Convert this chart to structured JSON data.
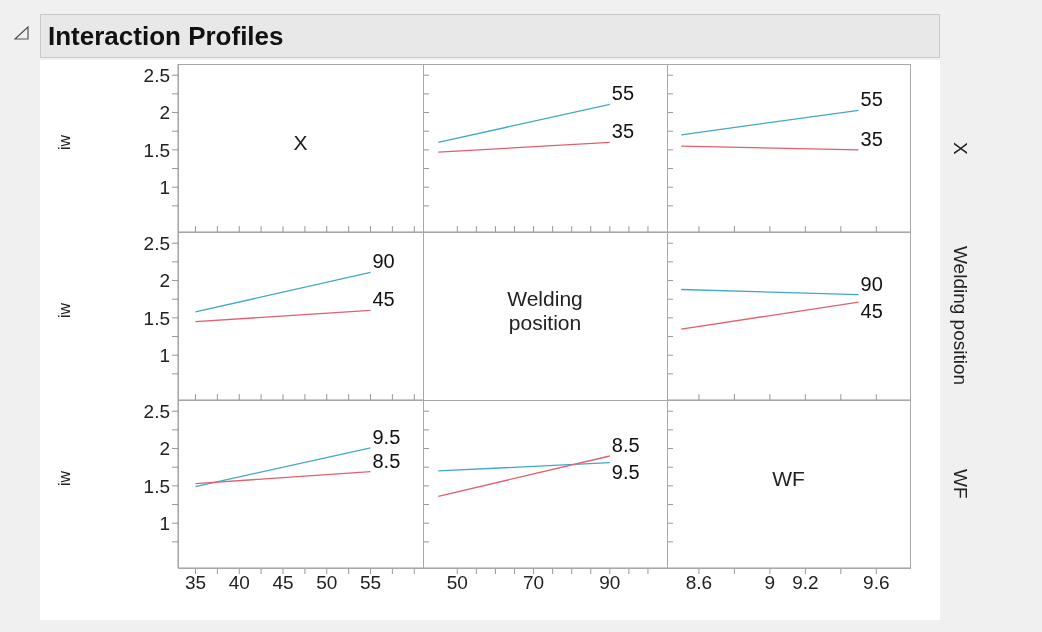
{
  "chart_data": [
    {
      "type": "line",
      "title": "Interaction Profiles",
      "annotations": [
        "X"
      ],
      "ylabel": "iw",
      "tick_labels": "y",
      "xlim": [
        33,
        61
      ],
      "xticks": [
        35,
        {
          "value": 37.5,
          "label": null
        },
        40,
        {
          "value": 42.5,
          "label": null
        },
        45,
        {
          "value": 47.5,
          "label": null
        },
        50,
        {
          "value": 52.5,
          "label": null
        },
        55,
        {
          "value": 57.5,
          "label": null
        },
        {
          "value": 60,
          "label": null
        }
      ],
      "ylim": [
        0.4,
        2.65
      ],
      "yticks": [
        {
          "value": 0.75,
          "label": null
        },
        1,
        {
          "value": 1.25,
          "label": null
        },
        1.5,
        {
          "value": 1.75,
          "label": null
        },
        2,
        {
          "value": 2.25,
          "label": null
        },
        2.5
      ]
    },
    {
      "type": "line",
      "marker": "none",
      "line_style": "solid",
      "tick_labels": false,
      "xlim": [
        41,
        105
      ],
      "xticks": [
        50,
        {
          "value": 55,
          "label": null
        },
        {
          "value": 60,
          "label": null
        },
        {
          "value": 65,
          "label": null
        },
        70,
        {
          "value": 75,
          "label": null
        },
        {
          "value": 80,
          "label": null
        },
        {
          "value": 85,
          "label": null
        },
        90,
        {
          "value": 95,
          "label": null
        },
        {
          "value": 100,
          "label": null
        }
      ],
      "ylim": [
        0.4,
        2.65
      ],
      "yticks": [
        {
          "value": 0.75,
          "label": null
        },
        1,
        {
          "value": 1.25,
          "label": null
        },
        1.5,
        {
          "value": 1.75,
          "label": null
        },
        2,
        {
          "value": 2.25,
          "label": null
        },
        2.5
      ],
      "series": [
        {
          "name": "55",
          "color": "#3fa9c9",
          "x": [
            45,
            90
          ],
          "values": [
            1.6,
            2.11
          ]
        },
        {
          "name": "35",
          "color": "#e0606e",
          "x": [
            45,
            90
          ],
          "values": [
            1.47,
            1.6
          ]
        }
      ]
    },
    {
      "type": "line",
      "marker": "none",
      "line_style": "solid",
      "tick_labels": false,
      "y2label": "X",
      "xlim": [
        8.42,
        9.79
      ],
      "xticks": [
        8.6,
        {
          "value": 8.8,
          "label": null
        },
        9,
        9.2,
        {
          "value": 9.4,
          "label": null
        },
        9.6
      ],
      "ylim": [
        0.4,
        2.65
      ],
      "yticks": [
        {
          "value": 0.75,
          "label": null
        },
        1,
        {
          "value": 1.25,
          "label": null
        },
        1.5,
        {
          "value": 1.75,
          "label": null
        },
        2,
        {
          "value": 2.25,
          "label": null
        },
        2.5
      ],
      "series": [
        {
          "name": "55",
          "color": "#3fa9c9",
          "x": [
            8.5,
            9.5
          ],
          "values": [
            1.7,
            2.03
          ]
        },
        {
          "name": "35",
          "color": "#e0606e",
          "x": [
            8.5,
            9.5
          ],
          "values": [
            1.55,
            1.5
          ]
        }
      ]
    },
    {
      "type": "line",
      "marker": "none",
      "line_style": "solid",
      "ylabel": "iw",
      "tick_labels": "y",
      "xlim": [
        33,
        61
      ],
      "xticks": [
        35,
        {
          "value": 37.5,
          "label": null
        },
        40,
        {
          "value": 42.5,
          "label": null
        },
        45,
        {
          "value": 47.5,
          "label": null
        },
        50,
        {
          "value": 52.5,
          "label": null
        },
        55,
        {
          "value": 57.5,
          "label": null
        },
        {
          "value": 60,
          "label": null
        }
      ],
      "ylim": [
        0.4,
        2.65
      ],
      "yticks": [
        {
          "value": 0.75,
          "label": null
        },
        1,
        {
          "value": 1.25,
          "label": null
        },
        1.5,
        {
          "value": 1.75,
          "label": null
        },
        2,
        {
          "value": 2.25,
          "label": null
        },
        2.5
      ],
      "series": [
        {
          "name": "90",
          "color": "#3fa9c9",
          "x": [
            35,
            55
          ],
          "values": [
            1.58,
            2.11
          ]
        },
        {
          "name": "45",
          "color": "#e0606e",
          "x": [
            35,
            55
          ],
          "values": [
            1.45,
            1.6
          ]
        }
      ]
    },
    {
      "type": "other",
      "annotations": [
        "Welding position"
      ]
    },
    {
      "type": "line",
      "marker": "none",
      "line_style": "solid",
      "tick_labels": false,
      "y2label": "Welding position",
      "xlim": [
        8.42,
        9.79
      ],
      "xticks": [
        8.6,
        {
          "value": 8.8,
          "label": null
        },
        9,
        9.2,
        {
          "value": 9.4,
          "label": null
        },
        9.6
      ],
      "ylim": [
        0.4,
        2.65
      ],
      "yticks": [
        {
          "value": 0.75,
          "label": null
        },
        1,
        {
          "value": 1.25,
          "label": null
        },
        1.5,
        {
          "value": 1.75,
          "label": null
        },
        2,
        {
          "value": 2.25,
          "label": null
        },
        2.5
      ],
      "series": [
        {
          "name": "90",
          "color": "#3fa9c9",
          "x": [
            8.5,
            9.5
          ],
          "values": [
            1.88,
            1.81
          ]
        },
        {
          "name": "45",
          "color": "#e0606e",
          "x": [
            8.5,
            9.5
          ],
          "values": [
            1.35,
            1.71
          ]
        }
      ]
    },
    {
      "type": "line",
      "marker": "none",
      "line_style": "solid",
      "ylabel": "iw",
      "xlim": [
        33,
        61
      ],
      "xticks": [
        35,
        {
          "value": 37.5,
          "label": null
        },
        40,
        {
          "value": 42.5,
          "label": null
        },
        45,
        {
          "value": 47.5,
          "label": null
        },
        50,
        {
          "value": 52.5,
          "label": null
        },
        55,
        {
          "value": 57.5,
          "label": null
        },
        {
          "value": 60,
          "label": null
        }
      ],
      "ylim": [
        0.4,
        2.65
      ],
      "yticks": [
        {
          "value": 0.75,
          "label": null
        },
        1,
        {
          "value": 1.25,
          "label": null
        },
        1.5,
        {
          "value": 1.75,
          "label": null
        },
        2,
        {
          "value": 2.25,
          "label": null
        },
        2.5
      ],
      "series": [
        {
          "name": "9.5",
          "color": "#3fa9c9",
          "x": [
            35,
            55
          ],
          "values": [
            1.49,
            2.01
          ]
        },
        {
          "name": "8.5",
          "color": "#e0606e",
          "x": [
            35,
            55
          ],
          "values": [
            1.53,
            1.69
          ]
        }
      ]
    },
    {
      "type": "line",
      "marker": "none",
      "line_style": "solid",
      "tick_labels": "x",
      "xlim": [
        41,
        105
      ],
      "xticks": [
        50,
        {
          "value": 55,
          "label": null
        },
        {
          "value": 60,
          "label": null
        },
        {
          "value": 65,
          "label": null
        },
        70,
        {
          "value": 75,
          "label": null
        },
        {
          "value": 80,
          "label": null
        },
        {
          "value": 85,
          "label": null
        },
        90,
        {
          "value": 95,
          "label": null
        },
        {
          "value": 100,
          "label": null
        }
      ],
      "ylim": [
        0.4,
        2.65
      ],
      "yticks": [
        {
          "value": 0.75,
          "label": null
        },
        1,
        {
          "value": 1.25,
          "label": null
        },
        1.5,
        {
          "value": 1.75,
          "label": null
        },
        2,
        {
          "value": 2.25,
          "label": null
        },
        2.5
      ],
      "series": [
        {
          "name": "9.5",
          "color": "#3fa9c9",
          "x": [
            45,
            90
          ],
          "values": [
            1.7,
            1.81
          ]
        },
        {
          "name": "8.5",
          "color": "#e0606e",
          "x": [
            45,
            90
          ],
          "values": [
            1.36,
            1.9
          ]
        }
      ]
    },
    {
      "type": "line",
      "annotations": [
        "WF"
      ],
      "tick_labels": "x",
      "y2label": "WF",
      "xlim": [
        8.42,
        9.79
      ],
      "xticks": [
        8.6,
        {
          "value": 8.8,
          "label": null
        },
        9,
        9.2,
        {
          "value": 9.4,
          "label": null
        },
        9.6
      ],
      "ylim": [
        0.4,
        2.65
      ],
      "yticks": [
        {
          "value": 0.75,
          "label": null
        },
        1,
        {
          "value": 1.25,
          "label": null
        },
        1.5,
        {
          "value": 1.75,
          "label": null
        },
        2,
        {
          "value": 2.25,
          "label": null
        },
        2.5
      ]
    }
  ]
}
